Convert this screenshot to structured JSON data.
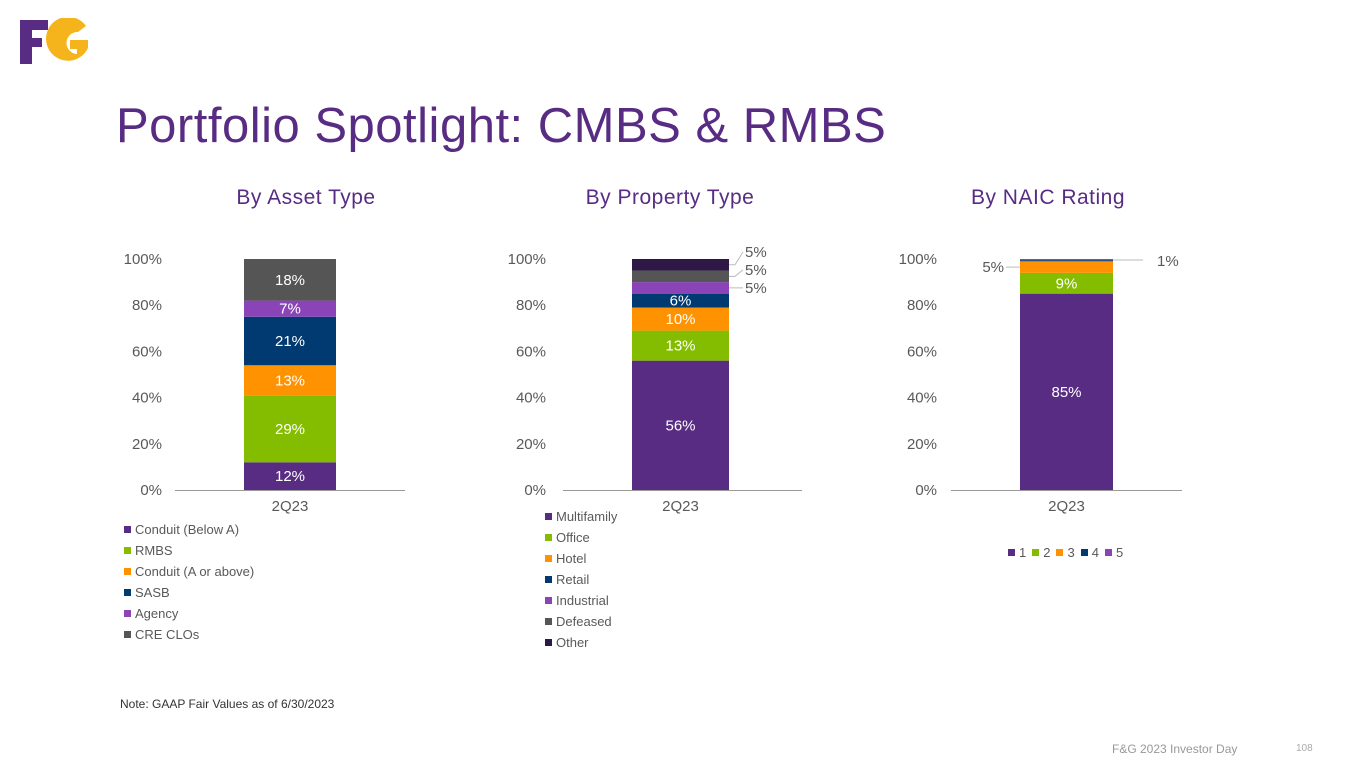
{
  "logo_text": "F&G",
  "title": "Portfolio Spotlight:  CMBS & RMBS",
  "note": "Note: GAAP Fair Values as of 6/30/2023",
  "footer": "F&G 2023 Investor Day",
  "page_number": "108",
  "chart_data": [
    {
      "type": "bar",
      "stacked": true,
      "title": "By Asset Type",
      "categories": [
        "2Q23"
      ],
      "yticks": [
        "0%",
        "20%",
        "40%",
        "60%",
        "80%",
        "100%"
      ],
      "ylim": [
        0,
        100
      ],
      "legend_position": "bottom",
      "series": [
        {
          "name": "Conduit (Below A)",
          "values": [
            12
          ],
          "label": "12%",
          "color": "#582C83"
        },
        {
          "name": "RMBS",
          "values": [
            29
          ],
          "label": "29%",
          "color": "#84BD00"
        },
        {
          "name": "Conduit (A or above)",
          "values": [
            13
          ],
          "label": "13%",
          "color": "#FF9200"
        },
        {
          "name": "SASB",
          "values": [
            21
          ],
          "label": "21%",
          "color": "#003A70"
        },
        {
          "name": "Agency",
          "values": [
            7
          ],
          "label": "7%",
          "color": "#8B44B8"
        },
        {
          "name": "CRE CLOs",
          "values": [
            18
          ],
          "label": "18%",
          "color": "#555555"
        }
      ]
    },
    {
      "type": "bar",
      "stacked": true,
      "title": "By Property Type",
      "categories": [
        "2Q23"
      ],
      "yticks": [
        "0%",
        "20%",
        "40%",
        "60%",
        "80%",
        "100%"
      ],
      "ylim": [
        0,
        100
      ],
      "legend_position": "bottom",
      "series": [
        {
          "name": "Multifamily",
          "values": [
            56
          ],
          "label": "56%",
          "color": "#582C83"
        },
        {
          "name": "Office",
          "values": [
            13
          ],
          "label": "13%",
          "color": "#84BD00"
        },
        {
          "name": "Hotel",
          "values": [
            10
          ],
          "label": "10%",
          "color": "#FF9200"
        },
        {
          "name": "Retail",
          "values": [
            6
          ],
          "label": "6%",
          "color": "#003A70"
        },
        {
          "name": "Industrial",
          "values": [
            5
          ],
          "label": "5%",
          "color": "#8B44B8"
        },
        {
          "name": "Defeased",
          "values": [
            5
          ],
          "label": "5%",
          "color": "#555555"
        },
        {
          "name": "Other",
          "values": [
            5
          ],
          "label": "5%",
          "color": "#2D1846"
        }
      ]
    },
    {
      "type": "bar",
      "stacked": true,
      "title": "By NAIC Rating",
      "categories": [
        "2Q23"
      ],
      "yticks": [
        "0%",
        "20%",
        "40%",
        "60%",
        "80%",
        "100%"
      ],
      "ylim": [
        0,
        100
      ],
      "legend_position": "bottom",
      "series": [
        {
          "name": "1",
          "values": [
            85
          ],
          "label": "85%",
          "color": "#582C83"
        },
        {
          "name": "2",
          "values": [
            9
          ],
          "label": "9%",
          "color": "#84BD00"
        },
        {
          "name": "3",
          "values": [
            5
          ],
          "label": "5%",
          "color": "#FF9200"
        },
        {
          "name": "4",
          "values": [
            0.5
          ],
          "label": "",
          "color": "#003A70"
        },
        {
          "name": "5",
          "values": [
            0.5
          ],
          "label": "",
          "color": "#8B44B8"
        }
      ],
      "annotations": [
        "1%"
      ]
    }
  ]
}
